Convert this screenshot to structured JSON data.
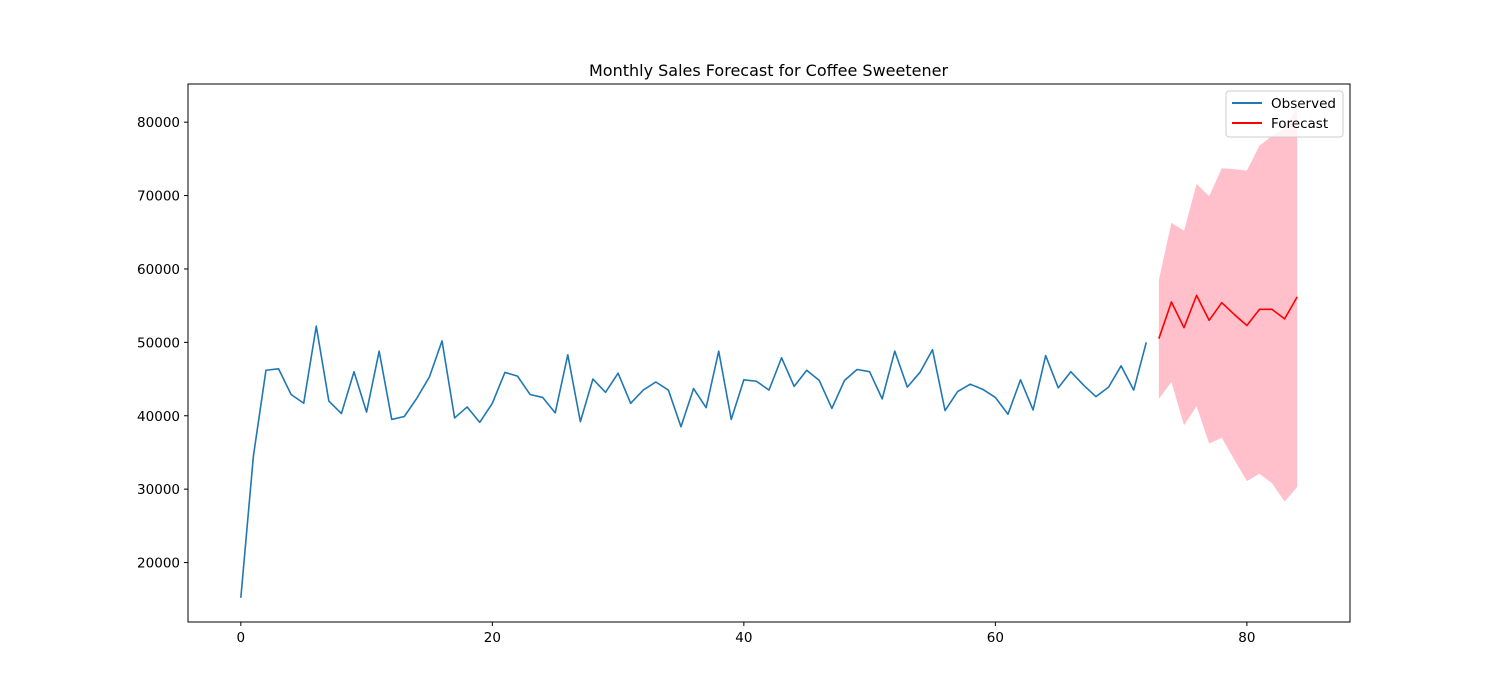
{
  "chart_data": {
    "type": "line",
    "title": "Monthly Sales Forecast for Coffee Sweetener",
    "xlabel": "",
    "ylabel": "",
    "xlim": [
      -4.2,
      88.2
    ],
    "ylim": [
      11900,
      85200
    ],
    "x_ticks": [
      0,
      20,
      40,
      60,
      80
    ],
    "y_ticks": [
      20000,
      30000,
      40000,
      50000,
      60000,
      70000,
      80000
    ],
    "grid": false,
    "legend": "top-right",
    "series": [
      {
        "name": "Observed",
        "color": "#1f77b4",
        "x": [
          0,
          1,
          2,
          3,
          4,
          5,
          6,
          7,
          8,
          9,
          10,
          11,
          12,
          13,
          14,
          15,
          16,
          17,
          18,
          19,
          20,
          21,
          22,
          23,
          24,
          25,
          26,
          27,
          28,
          29,
          30,
          31,
          32,
          33,
          34,
          35,
          36,
          37,
          38,
          39,
          40,
          41,
          42,
          43,
          44,
          45,
          46,
          47,
          48,
          49,
          50,
          51,
          52,
          53,
          54,
          55,
          56,
          57,
          58,
          59,
          60,
          61,
          62,
          63,
          64,
          65,
          66,
          67,
          68,
          69,
          70,
          71,
          72
        ],
        "values": [
          15200,
          34500,
          46200,
          46400,
          42900,
          41700,
          52200,
          42000,
          40300,
          46000,
          40500,
          48800,
          39500,
          39900,
          42400,
          45300,
          50200,
          39700,
          41200,
          39100,
          41700,
          45900,
          45400,
          42900,
          42500,
          40400,
          48300,
          39200,
          45000,
          43200,
          45800,
          41700,
          43500,
          44600,
          43500,
          38500,
          43700,
          41100,
          48800,
          39500,
          44900,
          44700,
          43500,
          47900,
          44000,
          46200,
          44800,
          41000,
          44800,
          46300,
          46000,
          42300,
          48800,
          43900,
          45900,
          49000,
          40700,
          43300,
          44300,
          43600,
          42500,
          40200,
          44900,
          40800,
          48200,
          43800,
          46000,
          44200,
          42600,
          43900,
          46800,
          43500,
          50000
        ]
      },
      {
        "name": "Forecast",
        "color": "#ff0000",
        "x": [
          73,
          74,
          75,
          76,
          77,
          78,
          79,
          80,
          81,
          82,
          83,
          84
        ],
        "values": [
          50500,
          55500,
          52000,
          56400,
          53000,
          55400,
          53800,
          52300,
          54500,
          54500,
          53200,
          56200
        ]
      }
    ],
    "confidence_band": {
      "color": "#ffc0cb",
      "x": [
        73,
        74,
        75,
        76,
        77,
        78,
        79,
        80,
        81,
        82,
        83,
        84
      ],
      "lower": [
        42300,
        44600,
        38700,
        41300,
        36200,
        37000,
        34000,
        31100,
        32100,
        30800,
        28300,
        30300
      ],
      "upper": [
        58500,
        66300,
        65200,
        71600,
        69900,
        73700,
        73600,
        73400,
        76800,
        78100,
        79200,
        82000
      ]
    }
  }
}
